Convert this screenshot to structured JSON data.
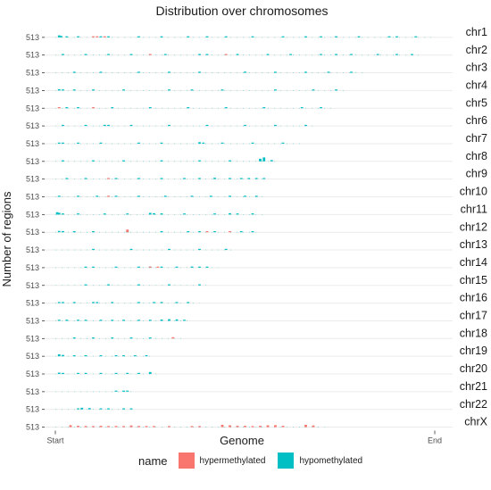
{
  "chart_data": {
    "type": "bar",
    "title": "Distribution over chromosomes",
    "xlabel": "Genome",
    "ylabel": "Number of regions",
    "x_ticks": [
      "Start",
      "End"
    ],
    "y_tick_label": "513",
    "grid": true,
    "facet_direction": "rows",
    "legend": {
      "title": "name",
      "placement": "bottom",
      "entries": [
        "hypermethylated",
        "hypomethylated"
      ]
    },
    "colors": {
      "hypermethylated": "#F8766D",
      "hypomethylated": "#00BFC4"
    },
    "x_range": [
      0,
      1
    ],
    "ylim": [
      0,
      513
    ],
    "chromosomes": [
      {
        "name": "chr1",
        "extent": 1.0,
        "hyper": [
          [
            0.1,
            30
          ],
          [
            0.11,
            25
          ],
          [
            0.13,
            20
          ]
        ],
        "hypo": [
          [
            0.01,
            60
          ],
          [
            0.015,
            45
          ],
          [
            0.03,
            30
          ],
          [
            0.06,
            20
          ],
          [
            0.12,
            25
          ],
          [
            0.14,
            20
          ],
          [
            0.22,
            15
          ],
          [
            0.28,
            12
          ],
          [
            0.35,
            15
          ],
          [
            0.4,
            10
          ],
          [
            0.45,
            12
          ],
          [
            0.52,
            15
          ],
          [
            0.6,
            12
          ],
          [
            0.66,
            18
          ],
          [
            0.7,
            20
          ],
          [
            0.74,
            12
          ],
          [
            0.8,
            15
          ],
          [
            0.88,
            20
          ],
          [
            0.9,
            12
          ],
          [
            0.95,
            10
          ]
        ]
      },
      {
        "name": "chr2",
        "extent": 0.97,
        "hyper": [
          [
            0.25,
            12
          ],
          [
            0.45,
            10
          ]
        ],
        "hypo": [
          [
            0.02,
            15
          ],
          [
            0.08,
            10
          ],
          [
            0.14,
            15
          ],
          [
            0.2,
            12
          ],
          [
            0.29,
            10
          ],
          [
            0.38,
            30
          ],
          [
            0.4,
            20
          ],
          [
            0.48,
            12
          ],
          [
            0.56,
            10
          ],
          [
            0.62,
            15
          ],
          [
            0.7,
            12
          ],
          [
            0.74,
            18
          ],
          [
            0.78,
            30
          ],
          [
            0.85,
            20
          ],
          [
            0.9,
            15
          ],
          [
            0.94,
            12
          ]
        ]
      },
      {
        "name": "chr3",
        "extent": 0.81,
        "hyper": [],
        "hypo": [
          [
            0.05,
            10
          ],
          [
            0.12,
            10
          ],
          [
            0.22,
            12
          ],
          [
            0.3,
            10
          ],
          [
            0.38,
            15
          ],
          [
            0.5,
            35
          ],
          [
            0.58,
            10
          ],
          [
            0.66,
            15
          ],
          [
            0.72,
            12
          ],
          [
            0.78,
            10
          ]
        ]
      },
      {
        "name": "chr4",
        "extent": 0.77,
        "hyper": [],
        "hypo": [
          [
            0.01,
            40
          ],
          [
            0.02,
            30
          ],
          [
            0.05,
            15
          ],
          [
            0.1,
            12
          ],
          [
            0.18,
            12
          ],
          [
            0.3,
            10
          ],
          [
            0.36,
            15
          ],
          [
            0.44,
            10
          ],
          [
            0.58,
            12
          ],
          [
            0.68,
            15
          ],
          [
            0.74,
            10
          ]
        ]
      },
      {
        "name": "chr5",
        "extent": 0.74,
        "hyper": [
          [
            0.01,
            35
          ],
          [
            0.1,
            20
          ]
        ],
        "hypo": [
          [
            0.03,
            12
          ],
          [
            0.06,
            10
          ],
          [
            0.15,
            12
          ],
          [
            0.25,
            15
          ],
          [
            0.35,
            10
          ],
          [
            0.45,
            12
          ],
          [
            0.55,
            10
          ],
          [
            0.65,
            25
          ],
          [
            0.7,
            12
          ]
        ]
      },
      {
        "name": "chr6",
        "extent": 0.69,
        "hyper": [],
        "hypo": [
          [
            0.02,
            15
          ],
          [
            0.08,
            12
          ],
          [
            0.13,
            35
          ],
          [
            0.14,
            25
          ],
          [
            0.2,
            12
          ],
          [
            0.3,
            10
          ],
          [
            0.4,
            15
          ],
          [
            0.5,
            12
          ],
          [
            0.58,
            10
          ],
          [
            0.66,
            12
          ]
        ]
      },
      {
        "name": "chr7",
        "extent": 0.65,
        "hyper": [],
        "hypo": [
          [
            0.01,
            30
          ],
          [
            0.02,
            25
          ],
          [
            0.06,
            15
          ],
          [
            0.12,
            12
          ],
          [
            0.22,
            10
          ],
          [
            0.28,
            12
          ],
          [
            0.38,
            45
          ],
          [
            0.39,
            30
          ],
          [
            0.44,
            12
          ],
          [
            0.52,
            12
          ],
          [
            0.6,
            15
          ]
        ]
      },
      {
        "name": "chr8",
        "extent": 0.59,
        "hyper": [],
        "hypo": [
          [
            0.02,
            10
          ],
          [
            0.1,
            10
          ],
          [
            0.18,
            12
          ],
          [
            0.28,
            10
          ],
          [
            0.38,
            12
          ],
          [
            0.46,
            10
          ],
          [
            0.54,
            80
          ],
          [
            0.55,
            120
          ],
          [
            0.57,
            40
          ]
        ]
      },
      {
        "name": "chr9",
        "extent": 0.56,
        "hyper": [
          [
            0.14,
            10
          ]
        ],
        "hypo": [
          [
            0.03,
            12
          ],
          [
            0.08,
            10
          ],
          [
            0.16,
            12
          ],
          [
            0.22,
            10
          ],
          [
            0.28,
            12
          ],
          [
            0.34,
            10
          ],
          [
            0.38,
            12
          ],
          [
            0.42,
            40
          ],
          [
            0.46,
            25
          ],
          [
            0.49,
            15
          ],
          [
            0.51,
            20
          ],
          [
            0.53,
            18
          ],
          [
            0.55,
            12
          ]
        ]
      },
      {
        "name": "chr10",
        "extent": 0.55,
        "hyper": [
          [
            0.14,
            15
          ]
        ],
        "hypo": [
          [
            0.01,
            12
          ],
          [
            0.06,
            10
          ],
          [
            0.11,
            15
          ],
          [
            0.16,
            20
          ],
          [
            0.22,
            12
          ],
          [
            0.29,
            10
          ],
          [
            0.36,
            12
          ],
          [
            0.41,
            20
          ],
          [
            0.46,
            25
          ],
          [
            0.5,
            15
          ],
          [
            0.53,
            12
          ]
        ]
      },
      {
        "name": "chr11",
        "extent": 0.55,
        "hyper": [],
        "hypo": [
          [
            0.005,
            70
          ],
          [
            0.01,
            50
          ],
          [
            0.02,
            25
          ],
          [
            0.06,
            12
          ],
          [
            0.13,
            12
          ],
          [
            0.19,
            15
          ],
          [
            0.25,
            50
          ],
          [
            0.26,
            40
          ],
          [
            0.28,
            35
          ],
          [
            0.34,
            12
          ],
          [
            0.42,
            15
          ],
          [
            0.46,
            40
          ],
          [
            0.48,
            30
          ],
          [
            0.52,
            35
          ]
        ]
      },
      {
        "name": "chr12",
        "extent": 0.54,
        "hyper": [
          [
            0.19,
            80
          ],
          [
            0.4,
            20
          ],
          [
            0.46,
            15
          ]
        ],
        "hypo": [
          [
            0.01,
            40
          ],
          [
            0.02,
            35
          ],
          [
            0.05,
            25
          ],
          [
            0.1,
            12
          ],
          [
            0.19,
            60
          ],
          [
            0.28,
            12
          ],
          [
            0.35,
            15
          ],
          [
            0.38,
            25
          ],
          [
            0.42,
            20
          ],
          [
            0.49,
            15
          ],
          [
            0.52,
            12
          ]
        ]
      },
      {
        "name": "chr13",
        "extent": 0.47,
        "hyper": [],
        "hypo": [
          [
            0.1,
            10
          ],
          [
            0.2,
            12
          ],
          [
            0.3,
            10
          ],
          [
            0.38,
            12
          ],
          [
            0.45,
            20
          ]
        ]
      },
      {
        "name": "chr14",
        "extent": 0.43,
        "hyper": [
          [
            0.25,
            25
          ],
          [
            0.27,
            15
          ]
        ],
        "hypo": [
          [
            0.08,
            30
          ],
          [
            0.1,
            20
          ],
          [
            0.16,
            12
          ],
          [
            0.22,
            15
          ],
          [
            0.25,
            30
          ],
          [
            0.28,
            25
          ],
          [
            0.32,
            12
          ],
          [
            0.36,
            35
          ],
          [
            0.38,
            30
          ],
          [
            0.4,
            25
          ]
        ]
      },
      {
        "name": "chr15",
        "extent": 0.41,
        "hyper": [],
        "hypo": [
          [
            0.08,
            15
          ],
          [
            0.14,
            12
          ],
          [
            0.22,
            10
          ],
          [
            0.3,
            15
          ],
          [
            0.38,
            12
          ]
        ]
      },
      {
        "name": "chr16",
        "extent": 0.38,
        "hyper": [],
        "hypo": [
          [
            0.01,
            30
          ],
          [
            0.02,
            20
          ],
          [
            0.05,
            15
          ],
          [
            0.1,
            25
          ],
          [
            0.11,
            15
          ],
          [
            0.15,
            15
          ],
          [
            0.22,
            20
          ],
          [
            0.26,
            12
          ],
          [
            0.28,
            20
          ],
          [
            0.32,
            20
          ],
          [
            0.35,
            15
          ]
        ]
      },
      {
        "name": "chr17",
        "extent": 0.35,
        "hyper": [],
        "hypo": [
          [
            0.01,
            30
          ],
          [
            0.03,
            35
          ],
          [
            0.06,
            25
          ],
          [
            0.08,
            20
          ],
          [
            0.12,
            20
          ],
          [
            0.15,
            15
          ],
          [
            0.18,
            25
          ],
          [
            0.22,
            20
          ],
          [
            0.25,
            15
          ],
          [
            0.28,
            40
          ],
          [
            0.3,
            50
          ],
          [
            0.32,
            45
          ],
          [
            0.34,
            25
          ]
        ]
      },
      {
        "name": "chr18",
        "extent": 0.34,
        "hyper": [
          [
            0.31,
            40
          ]
        ],
        "hypo": [
          [
            0.05,
            12
          ],
          [
            0.1,
            10
          ],
          [
            0.15,
            12
          ],
          [
            0.2,
            10
          ],
          [
            0.25,
            12
          ]
        ]
      },
      {
        "name": "chr19",
        "extent": 0.26,
        "hyper": [],
        "hypo": [
          [
            0.01,
            60
          ],
          [
            0.02,
            40
          ],
          [
            0.05,
            30
          ],
          [
            0.08,
            20
          ],
          [
            0.12,
            15
          ],
          [
            0.16,
            12
          ],
          [
            0.18,
            25
          ],
          [
            0.21,
            15
          ],
          [
            0.24,
            20
          ]
        ]
      },
      {
        "name": "chr20",
        "extent": 0.27,
        "hyper": [],
        "hypo": [
          [
            0.01,
            40
          ],
          [
            0.02,
            20
          ],
          [
            0.06,
            15
          ],
          [
            0.08,
            30
          ],
          [
            0.12,
            20
          ],
          [
            0.16,
            15
          ],
          [
            0.19,
            12
          ],
          [
            0.22,
            20
          ],
          [
            0.25,
            60
          ]
        ]
      },
      {
        "name": "chr21",
        "extent": 0.21,
        "hyper": [],
        "hypo": [
          [
            0.16,
            15
          ],
          [
            0.18,
            25
          ],
          [
            0.19,
            20
          ]
        ]
      },
      {
        "name": "chr22",
        "extent": 0.21,
        "hyper": [],
        "hypo": [
          [
            0.06,
            20
          ],
          [
            0.07,
            50
          ],
          [
            0.09,
            40
          ],
          [
            0.12,
            20
          ],
          [
            0.14,
            12
          ],
          [
            0.18,
            15
          ],
          [
            0.2,
            12
          ]
        ]
      },
      {
        "name": "chrX",
        "extent": 0.71,
        "hyper": [
          [
            0.04,
            60
          ],
          [
            0.06,
            40
          ],
          [
            0.08,
            35
          ],
          [
            0.1,
            30
          ],
          [
            0.12,
            40
          ],
          [
            0.14,
            30
          ],
          [
            0.16,
            35
          ],
          [
            0.18,
            30
          ],
          [
            0.2,
            50
          ],
          [
            0.22,
            35
          ],
          [
            0.24,
            30
          ],
          [
            0.26,
            25
          ],
          [
            0.3,
            20
          ],
          [
            0.36,
            30
          ],
          [
            0.38,
            20
          ],
          [
            0.44,
            70
          ],
          [
            0.46,
            55
          ],
          [
            0.48,
            40
          ],
          [
            0.5,
            40
          ],
          [
            0.52,
            30
          ],
          [
            0.54,
            40
          ],
          [
            0.56,
            55
          ],
          [
            0.58,
            60
          ],
          [
            0.6,
            40
          ],
          [
            0.66,
            70
          ],
          [
            0.68,
            50
          ]
        ],
        "hypo": []
      }
    ]
  }
}
